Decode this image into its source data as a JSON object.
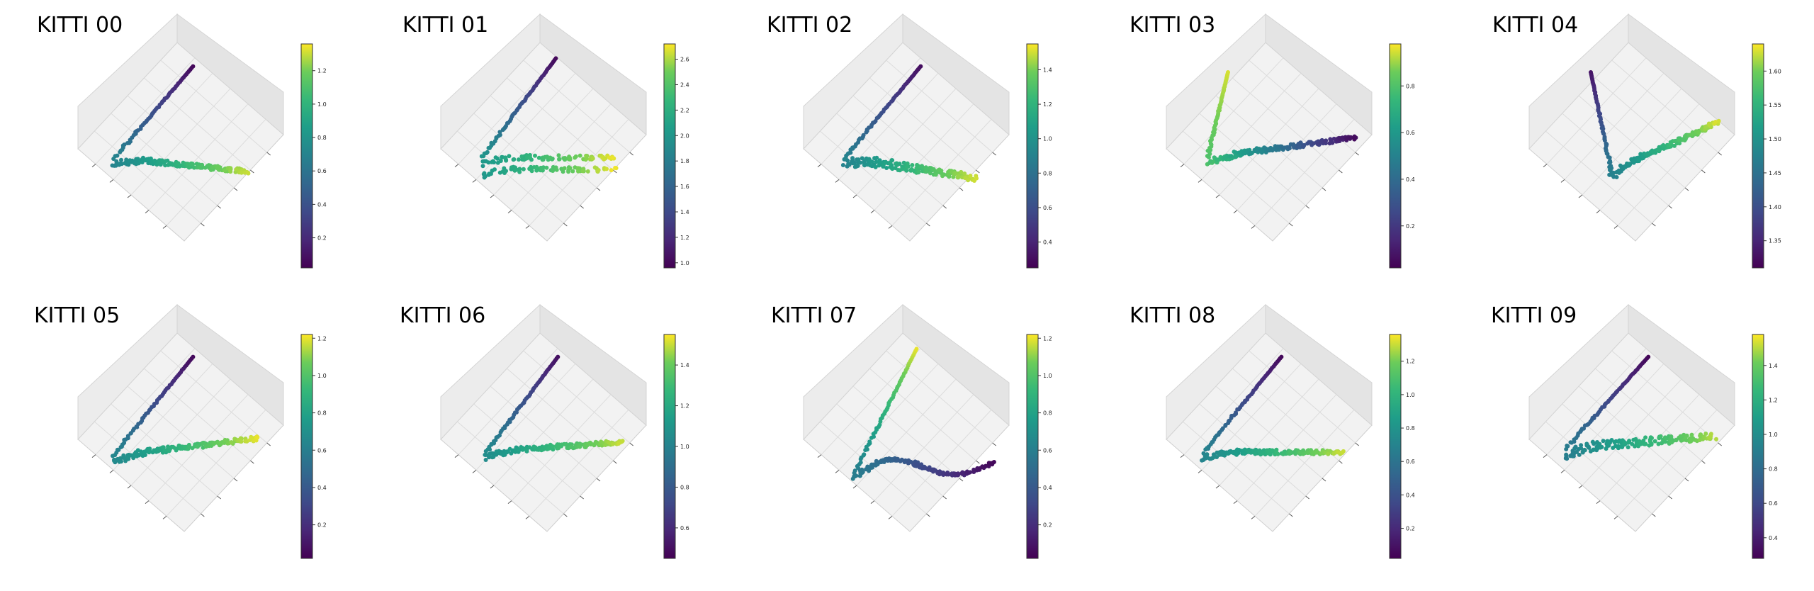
{
  "colormap": "viridis",
  "chart_data": [
    {
      "type": "scatter",
      "title": "KITTI 00",
      "colorbar": {
        "min": 0.02,
        "max": 1.36,
        "ticks": [
          0.2,
          0.4,
          0.6,
          0.8,
          1.0,
          1.2
        ]
      },
      "tick_labels": [
        "0.2",
        "0.4",
        "0.6",
        "0.8",
        "1.0",
        "1.2"
      ],
      "shape": "hook",
      "endpoints": {
        "top": {
          "x": 0.56,
          "y": 0.88,
          "c": 0.05
        },
        "bottom": {
          "x": 0.18,
          "y": 0.42,
          "c": 0.7
        },
        "tail": {
          "x": 0.82,
          "y": 0.35,
          "c": 1.3
        }
      }
    },
    {
      "type": "scatter",
      "title": "KITTI 01",
      "colorbar": {
        "min": 0.96,
        "max": 2.72,
        "ticks": [
          1.0,
          1.2,
          1.4,
          1.6,
          1.8,
          2.0,
          2.2,
          2.4,
          2.6
        ]
      },
      "tick_labels": [
        "1.0",
        "1.2",
        "1.4",
        "1.6",
        "1.8",
        "2.0",
        "2.2",
        "2.4",
        "2.6"
      ],
      "shape": "hook-double",
      "endpoints": {
        "top": {
          "x": 0.56,
          "y": 0.92,
          "c": 1.0
        },
        "bottom": {
          "x": 0.2,
          "y": 0.42,
          "c": 2.0
        },
        "tail": {
          "x": 0.85,
          "y": 0.42,
          "c": 2.7
        }
      }
    },
    {
      "type": "scatter",
      "title": "KITTI 02",
      "colorbar": {
        "min": 0.25,
        "max": 1.55,
        "ticks": [
          0.4,
          0.6,
          0.8,
          1.0,
          1.2,
          1.4
        ]
      },
      "tick_labels": [
        "0.4",
        "0.6",
        "0.8",
        "1.0",
        "1.2",
        "1.4"
      ],
      "shape": "hook-wide",
      "endpoints": {
        "top": {
          "x": 0.57,
          "y": 0.88,
          "c": 0.3
        },
        "bottom": {
          "x": 0.2,
          "y": 0.42,
          "c": 0.9
        },
        "tail": {
          "x": 0.83,
          "y": 0.32,
          "c": 1.5
        }
      }
    },
    {
      "type": "scatter",
      "title": "KITTI 03",
      "colorbar": {
        "min": 0.02,
        "max": 0.98,
        "ticks": [
          0.2,
          0.4,
          0.6,
          0.8
        ]
      },
      "tick_labels": [
        "0.2",
        "0.4",
        "0.6",
        "0.8"
      ],
      "shape": "hook-reverse",
      "endpoints": {
        "top": {
          "x": 0.3,
          "y": 0.85,
          "c": 0.95
        },
        "bottom": {
          "x": 0.2,
          "y": 0.42,
          "c": 0.8
        },
        "tail": {
          "x": 0.92,
          "y": 0.52,
          "c": 0.05
        }
      }
    },
    {
      "type": "scatter",
      "title": "KITTI 04",
      "colorbar": {
        "min": 1.31,
        "max": 1.64,
        "ticks": [
          1.35,
          1.4,
          1.45,
          1.5,
          1.55,
          1.6
        ]
      },
      "tick_labels": [
        "1.35",
        "1.40",
        "1.45",
        "1.50",
        "1.55",
        "1.60"
      ],
      "shape": "split",
      "endpoints": {
        "top": {
          "x": 0.3,
          "y": 0.85,
          "c": 1.33
        },
        "bottom": {
          "x": 0.4,
          "y": 0.35,
          "c": 1.47
        },
        "tail": {
          "x": 0.92,
          "y": 0.6,
          "c": 1.63
        }
      }
    },
    {
      "type": "scatter",
      "title": "KITTI 05",
      "colorbar": {
        "min": 0.02,
        "max": 1.22,
        "ticks": [
          0.2,
          0.4,
          0.6,
          0.8,
          1.0,
          1.2
        ]
      },
      "tick_labels": [
        "0.2",
        "0.4",
        "0.6",
        "0.8",
        "1.0",
        "1.2"
      ],
      "shape": "hook",
      "endpoints": {
        "top": {
          "x": 0.56,
          "y": 0.88,
          "c": 0.05
        },
        "bottom": {
          "x": 0.17,
          "y": 0.38,
          "c": 0.65
        },
        "tail": {
          "x": 0.88,
          "y": 0.47,
          "c": 1.2
        }
      }
    },
    {
      "type": "scatter",
      "title": "KITTI 06",
      "colorbar": {
        "min": 0.45,
        "max": 1.55,
        "ticks": [
          0.6,
          0.8,
          1.0,
          1.2,
          1.4
        ]
      },
      "tick_labels": [
        "0.6",
        "0.8",
        "1.0",
        "1.2",
        "1.4"
      ],
      "shape": "hook",
      "endpoints": {
        "top": {
          "x": 0.57,
          "y": 0.88,
          "c": 0.5
        },
        "bottom": {
          "x": 0.22,
          "y": 0.4,
          "c": 1.05
        },
        "tail": {
          "x": 0.88,
          "y": 0.45,
          "c": 1.5
        }
      }
    },
    {
      "type": "scatter",
      "title": "KITTI 07",
      "colorbar": {
        "min": 0.02,
        "max": 1.22,
        "ticks": [
          0.2,
          0.4,
          0.6,
          0.8,
          1.0,
          1.2
        ]
      },
      "tick_labels": [
        "0.2",
        "0.4",
        "0.6",
        "0.8",
        "1.0",
        "1.2"
      ],
      "shape": "vee",
      "endpoints": {
        "top": {
          "x": 0.55,
          "y": 0.92,
          "c": 1.2
        },
        "bottom": {
          "x": 0.25,
          "y": 0.3,
          "c": 0.6
        },
        "tail": {
          "x": 0.92,
          "y": 0.35,
          "c": 0.05
        }
      }
    },
    {
      "type": "scatter",
      "title": "KITTI 08",
      "colorbar": {
        "min": 0.02,
        "max": 1.36,
        "ticks": [
          0.2,
          0.4,
          0.6,
          0.8,
          1.0,
          1.2
        ]
      },
      "tick_labels": [
        "0.2",
        "0.4",
        "0.6",
        "0.8",
        "1.0",
        "1.2"
      ],
      "shape": "hook",
      "endpoints": {
        "top": {
          "x": 0.56,
          "y": 0.88,
          "c": 0.05
        },
        "bottom": {
          "x": 0.18,
          "y": 0.4,
          "c": 0.7
        },
        "tail": {
          "x": 0.86,
          "y": 0.4,
          "c": 1.3
        }
      }
    },
    {
      "type": "scatter",
      "title": "KITTI 09",
      "colorbar": {
        "min": 0.28,
        "max": 1.58,
        "ticks": [
          0.4,
          0.6,
          0.8,
          1.0,
          1.2,
          1.4
        ]
      },
      "tick_labels": [
        "0.4",
        "0.6",
        "0.8",
        "1.0",
        "1.2",
        "1.4"
      ],
      "shape": "hook-wide",
      "endpoints": {
        "top": {
          "x": 0.58,
          "y": 0.88,
          "c": 0.3
        },
        "bottom": {
          "x": 0.18,
          "y": 0.42,
          "c": 0.9
        },
        "tail": {
          "x": 0.9,
          "y": 0.48,
          "c": 1.5
        }
      }
    }
  ]
}
